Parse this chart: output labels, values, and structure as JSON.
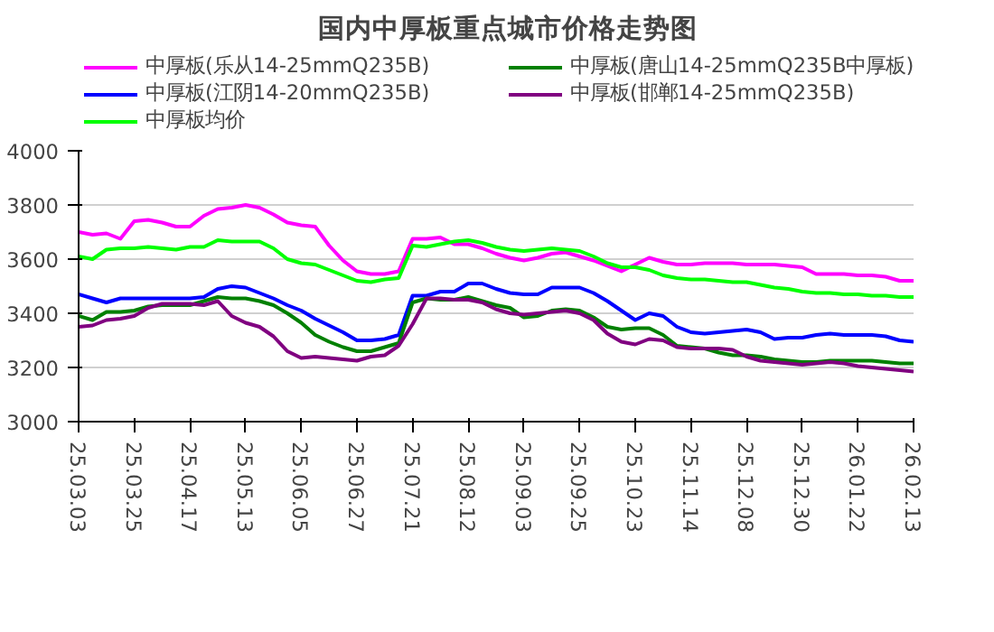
{
  "chart_data": {
    "type": "line",
    "title": "国内中厚板重点城市价格走势图",
    "categories": [
      "25.03.03",
      null,
      null,
      null,
      "25.03.25",
      null,
      null,
      null,
      "25.04.17",
      null,
      null,
      null,
      "25.05.13",
      null,
      null,
      null,
      "25.06.05",
      null,
      null,
      null,
      "25.06.27",
      null,
      null,
      null,
      "25.07.21",
      null,
      null,
      null,
      "25.08.12",
      null,
      null,
      null,
      "25.09.03",
      null,
      null,
      null,
      "25.09.25",
      null,
      null,
      null,
      "25.10.23",
      null,
      null,
      null,
      "25.11.14",
      null,
      null,
      null,
      "25.12.08",
      null,
      null,
      null,
      "25.12.30",
      null,
      null,
      null,
      "26.01.22",
      null,
      null,
      null,
      "26.02.13"
    ],
    "ylim": [
      3000,
      4000
    ],
    "yticks": [
      3000,
      3200,
      3400,
      3600,
      3800,
      4000
    ],
    "grid": "y",
    "legend": "top",
    "marker": "none",
    "line_style": "solid",
    "series": [
      {
        "name": "中厚板(乐从14-25mmQ235B)",
        "color": "#ff00ff",
        "values": [
          3700,
          3690,
          3695,
          3675,
          3740,
          3745,
          3735,
          3720,
          3720,
          3760,
          3785,
          3790,
          3800,
          3790,
          3765,
          3735,
          3725,
          3720,
          3650,
          3595,
          3555,
          3545,
          3545,
          3555,
          3675,
          3675,
          3680,
          3655,
          3655,
          3640,
          3620,
          3605,
          3595,
          3605,
          3620,
          3625,
          3610,
          3595,
          3575,
          3555,
          3580,
          3605,
          3590,
          3580,
          3580,
          3585,
          3585,
          3585,
          3580,
          3580,
          3580,
          3575,
          3570,
          3545,
          3545,
          3545,
          3540,
          3540,
          3535,
          3520,
          3520
        ]
      },
      {
        "name": "中厚板(江阴14-20mmQ235B)",
        "color": "#0000ff",
        "values": [
          3470,
          3455,
          3440,
          3455,
          3455,
          3455,
          3455,
          3455,
          3455,
          3460,
          3490,
          3500,
          3495,
          3475,
          3455,
          3430,
          3410,
          3380,
          3355,
          3330,
          3300,
          3300,
          3305,
          3320,
          3465,
          3465,
          3480,
          3480,
          3510,
          3510,
          3490,
          3475,
          3470,
          3470,
          3495,
          3495,
          3495,
          3475,
          3445,
          3410,
          3375,
          3400,
          3390,
          3350,
          3330,
          3325,
          3330,
          3335,
          3340,
          3330,
          3305,
          3310,
          3310,
          3320,
          3325,
          3320,
          3320,
          3320,
          3315,
          3300,
          3295
        ]
      },
      {
        "name": "中厚板均价",
        "color": "#00ff00",
        "values": [
          3610,
          3600,
          3635,
          3640,
          3640,
          3645,
          3640,
          3635,
          3645,
          3645,
          3670,
          3665,
          3665,
          3665,
          3640,
          3600,
          3585,
          3580,
          3560,
          3540,
          3520,
          3515,
          3525,
          3530,
          3650,
          3645,
          3655,
          3665,
          3670,
          3660,
          3645,
          3635,
          3630,
          3635,
          3640,
          3635,
          3630,
          3610,
          3585,
          3570,
          3570,
          3560,
          3540,
          3530,
          3525,
          3525,
          3520,
          3515,
          3515,
          3505,
          3495,
          3490,
          3480,
          3475,
          3475,
          3470,
          3470,
          3465,
          3465,
          3460,
          3460
        ]
      },
      {
        "name": "中厚板(唐山14-25mmQ235B中厚板)",
        "color": "#008000",
        "values": [
          3390,
          3375,
          3405,
          3405,
          3410,
          3425,
          3430,
          3430,
          3430,
          3445,
          3460,
          3455,
          3455,
          3445,
          3430,
          3400,
          3365,
          3320,
          3295,
          3275,
          3260,
          3260,
          3275,
          3290,
          3440,
          3455,
          3450,
          3450,
          3460,
          3445,
          3430,
          3420,
          3385,
          3390,
          3410,
          3415,
          3410,
          3385,
          3350,
          3340,
          3345,
          3345,
          3320,
          3280,
          3275,
          3270,
          3255,
          3245,
          3245,
          3240,
          3230,
          3225,
          3220,
          3220,
          3225,
          3225,
          3225,
          3225,
          3220,
          3215,
          3215
        ]
      },
      {
        "name": "中厚板(邯郸14-25mmQ235B)",
        "color": "#800080",
        "values": [
          3350,
          3355,
          3375,
          3380,
          3390,
          3420,
          3435,
          3435,
          3435,
          3430,
          3445,
          3390,
          3365,
          3350,
          3315,
          3260,
          3235,
          3240,
          3235,
          3230,
          3225,
          3240,
          3245,
          3280,
          3360,
          3455,
          3455,
          3450,
          3450,
          3440,
          3415,
          3400,
          3395,
          3400,
          3405,
          3410,
          3400,
          3375,
          3325,
          3295,
          3285,
          3305,
          3300,
          3275,
          3270,
          3270,
          3270,
          3265,
          3240,
          3225,
          3220,
          3215,
          3210,
          3215,
          3220,
          3215,
          3205,
          3200,
          3195,
          3190,
          3185
        ]
      }
    ]
  }
}
